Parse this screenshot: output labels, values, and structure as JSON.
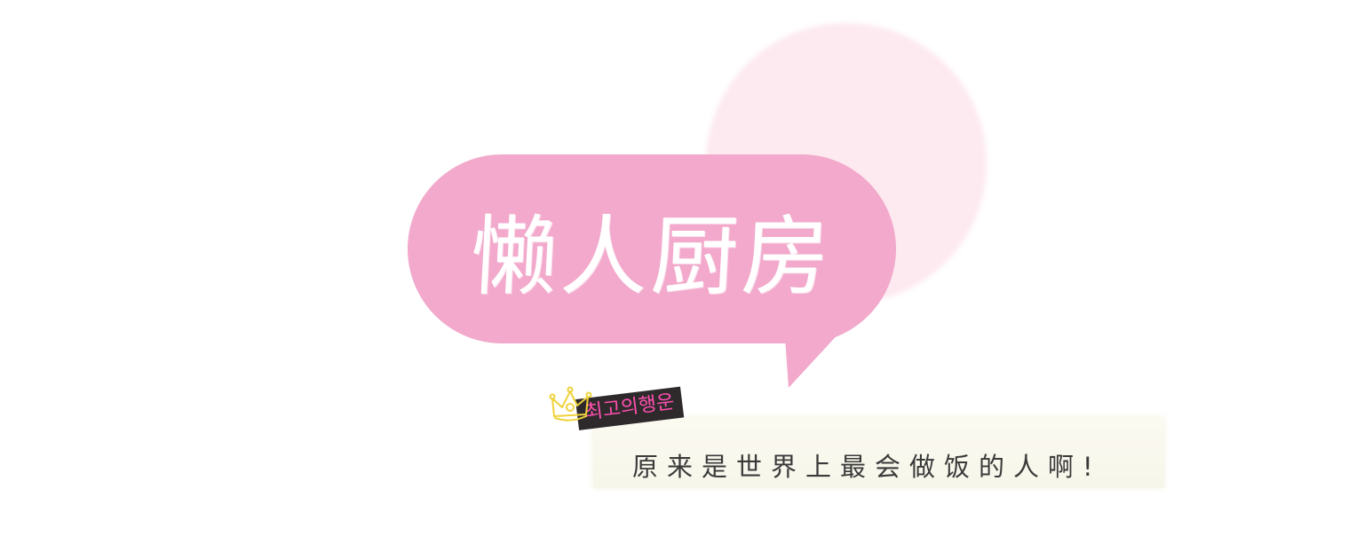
{
  "title": "懒人厨房",
  "tag": "최고의행운",
  "caption": "原来是世界上最会做饭的人啊!",
  "icons": {
    "crown": "crown-icon"
  },
  "colors": {
    "bubble": "#f2a9cb",
    "circle": "#fde9f0",
    "tag_background": "#2e2a2b",
    "tag_text": "#ff4fb0",
    "caption_text": "#3a3a3a",
    "strip": "#f9f8ed"
  }
}
